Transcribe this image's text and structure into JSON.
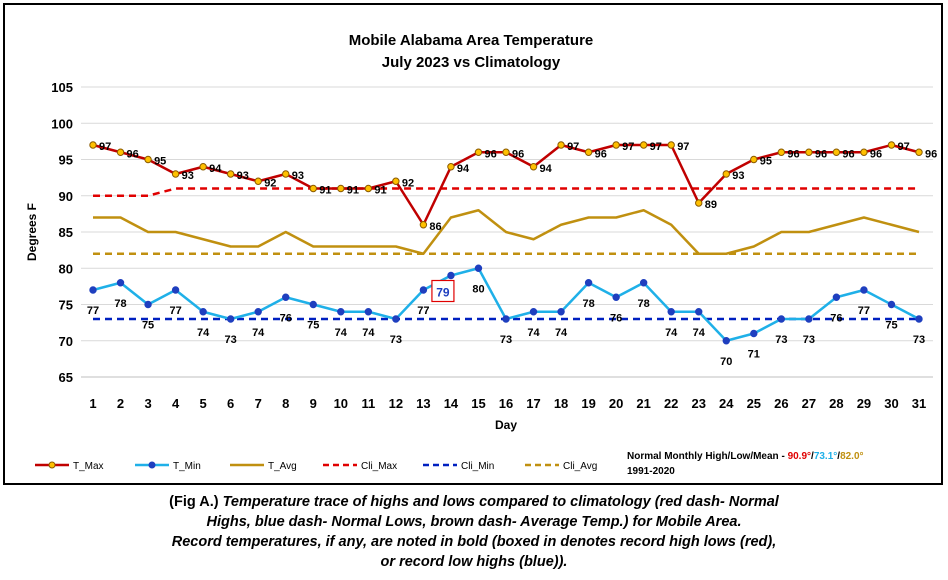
{
  "title_line1": "Mobile Alabama Area Temperature",
  "title_line2": "July 2023 vs Climatology",
  "chart_data": {
    "type": "line",
    "xlabel": "Day",
    "ylabel": "Degrees F",
    "ylim": [
      65,
      105
    ],
    "yticks": [
      65,
      70,
      75,
      80,
      85,
      90,
      95,
      100,
      105
    ],
    "x": [
      1,
      2,
      3,
      4,
      5,
      6,
      7,
      8,
      9,
      10,
      11,
      12,
      13,
      14,
      15,
      16,
      17,
      18,
      19,
      20,
      21,
      22,
      23,
      24,
      25,
      26,
      27,
      28,
      29,
      30,
      31
    ],
    "grid": "horizontal",
    "legend_position": "bottom",
    "series": [
      {
        "name": "T_Max",
        "color": "#c00000",
        "marker_fill": "#ffc000",
        "values": [
          97,
          96,
          95,
          93,
          94,
          93,
          92,
          93,
          91,
          91,
          91,
          92,
          86,
          94,
          96,
          96,
          94,
          97,
          96,
          97,
          97,
          97,
          89,
          93,
          95,
          96,
          96,
          96,
          96,
          97,
          96
        ]
      },
      {
        "name": "T_Min",
        "color": "#1fb0e8",
        "marker_fill": "#1f3fbf",
        "values": [
          77,
          78,
          75,
          77,
          74,
          73,
          74,
          76,
          75,
          74,
          74,
          73,
          77,
          79,
          80,
          73,
          74,
          74,
          78,
          76,
          78,
          74,
          74,
          70,
          71,
          73,
          73,
          76,
          77,
          75,
          73
        ]
      },
      {
        "name": "T_Avg",
        "color": "#c09010",
        "values": [
          87,
          87,
          85,
          85,
          84,
          83,
          83,
          85,
          83,
          83,
          83,
          83,
          82,
          87,
          88,
          85,
          84,
          86,
          87,
          87,
          88,
          86,
          82,
          82,
          83,
          85,
          85,
          86,
          87,
          86,
          85
        ]
      },
      {
        "name": "Cli_Max",
        "color": "#e00000",
        "dash": true,
        "values": [
          90,
          90,
          90,
          91,
          91,
          91,
          91,
          91,
          91,
          91,
          91,
          91,
          91,
          91,
          91,
          91,
          91,
          91,
          91,
          91,
          91,
          91,
          91,
          91,
          91,
          91,
          91,
          91,
          91,
          91,
          91
        ]
      },
      {
        "name": "Cli_Min",
        "color": "#0020c0",
        "dash": true,
        "values": [
          73,
          73,
          73,
          73,
          73,
          73,
          73,
          73,
          73,
          73,
          73,
          73,
          73,
          73,
          73,
          73,
          73,
          73,
          73,
          73,
          73,
          73,
          73,
          73,
          73,
          73,
          73,
          73,
          73,
          73,
          73
        ]
      },
      {
        "name": "Cli_Avg",
        "color": "#c09010",
        "dash": true,
        "values": [
          82,
          82,
          82,
          82,
          82,
          82,
          82,
          82,
          82,
          82,
          82,
          82,
          82,
          82,
          82,
          82,
          82,
          82,
          82,
          82,
          82,
          82,
          82,
          82,
          82,
          82,
          82,
          82,
          82,
          82,
          82
        ]
      }
    ],
    "record_box": {
      "day": 14,
      "value": 79,
      "color": "#e00000",
      "text_color": "#1f3fbf"
    }
  },
  "normals": {
    "label": "Normal Monthly High/Low/Mean - ",
    "high": "90.9°",
    "sep1": "/",
    "low": "73.1°",
    "sep2": "/",
    "mean": "82.0°",
    "period": "1991-2020",
    "high_color": "#e00000",
    "low_color": "#1fb0e8",
    "mean_color": "#c09010"
  },
  "caption": {
    "lead": "(Fig A.) ",
    "line1_body": "Temperature trace of highs and lows compared to climatology (red dash- Normal",
    "line2": "Highs, blue dash- Normal Lows, brown dash- Average Temp.) for Mobile Area.",
    "line3": "Record temperatures, if any, are noted in bold (boxed in denotes record high lows (red),",
    "line4": "or record low highs (blue))."
  }
}
